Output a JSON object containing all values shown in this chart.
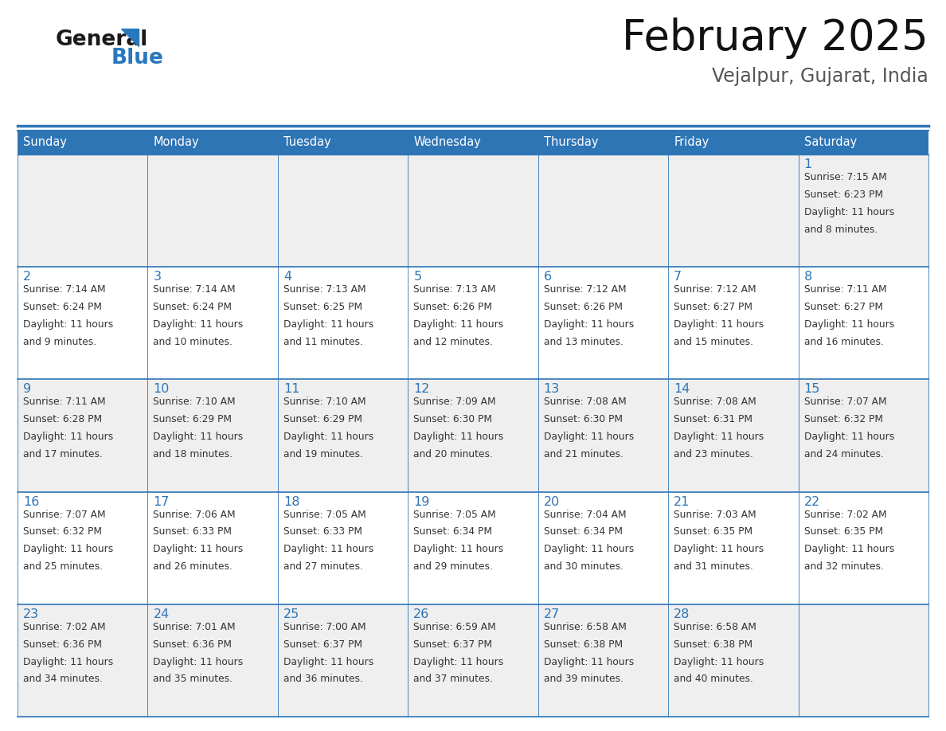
{
  "title": "February 2025",
  "subtitle": "Vejalpur, Gujarat, India",
  "header_bg": "#2E75B6",
  "header_text_color": "#FFFFFF",
  "cell_bg_odd": "#EFEFEF",
  "cell_bg_even": "#FFFFFF",
  "day_number_color": "#2E75B6",
  "info_text_color": "#333333",
  "border_color": "#2E75B6",
  "divider_color": "#2E75B6",
  "days_of_week": [
    "Sunday",
    "Monday",
    "Tuesday",
    "Wednesday",
    "Thursday",
    "Friday",
    "Saturday"
  ],
  "logo_general_color": "#1A1A1A",
  "logo_blue_color": "#2878BE",
  "calendar_data": [
    [
      null,
      null,
      null,
      null,
      null,
      null,
      {
        "day": "1",
        "sunrise": "7:15 AM",
        "sunset": "6:23 PM",
        "daylight_l1": "Daylight: 11 hours",
        "daylight_l2": "and 8 minutes."
      }
    ],
    [
      {
        "day": "2",
        "sunrise": "7:14 AM",
        "sunset": "6:24 PM",
        "daylight_l1": "Daylight: 11 hours",
        "daylight_l2": "and 9 minutes."
      },
      {
        "day": "3",
        "sunrise": "7:14 AM",
        "sunset": "6:24 PM",
        "daylight_l1": "Daylight: 11 hours",
        "daylight_l2": "and 10 minutes."
      },
      {
        "day": "4",
        "sunrise": "7:13 AM",
        "sunset": "6:25 PM",
        "daylight_l1": "Daylight: 11 hours",
        "daylight_l2": "and 11 minutes."
      },
      {
        "day": "5",
        "sunrise": "7:13 AM",
        "sunset": "6:26 PM",
        "daylight_l1": "Daylight: 11 hours",
        "daylight_l2": "and 12 minutes."
      },
      {
        "day": "6",
        "sunrise": "7:12 AM",
        "sunset": "6:26 PM",
        "daylight_l1": "Daylight: 11 hours",
        "daylight_l2": "and 13 minutes."
      },
      {
        "day": "7",
        "sunrise": "7:12 AM",
        "sunset": "6:27 PM",
        "daylight_l1": "Daylight: 11 hours",
        "daylight_l2": "and 15 minutes."
      },
      {
        "day": "8",
        "sunrise": "7:11 AM",
        "sunset": "6:27 PM",
        "daylight_l1": "Daylight: 11 hours",
        "daylight_l2": "and 16 minutes."
      }
    ],
    [
      {
        "day": "9",
        "sunrise": "7:11 AM",
        "sunset": "6:28 PM",
        "daylight_l1": "Daylight: 11 hours",
        "daylight_l2": "and 17 minutes."
      },
      {
        "day": "10",
        "sunrise": "7:10 AM",
        "sunset": "6:29 PM",
        "daylight_l1": "Daylight: 11 hours",
        "daylight_l2": "and 18 minutes."
      },
      {
        "day": "11",
        "sunrise": "7:10 AM",
        "sunset": "6:29 PM",
        "daylight_l1": "Daylight: 11 hours",
        "daylight_l2": "and 19 minutes."
      },
      {
        "day": "12",
        "sunrise": "7:09 AM",
        "sunset": "6:30 PM",
        "daylight_l1": "Daylight: 11 hours",
        "daylight_l2": "and 20 minutes."
      },
      {
        "day": "13",
        "sunrise": "7:08 AM",
        "sunset": "6:30 PM",
        "daylight_l1": "Daylight: 11 hours",
        "daylight_l2": "and 21 minutes."
      },
      {
        "day": "14",
        "sunrise": "7:08 AM",
        "sunset": "6:31 PM",
        "daylight_l1": "Daylight: 11 hours",
        "daylight_l2": "and 23 minutes."
      },
      {
        "day": "15",
        "sunrise": "7:07 AM",
        "sunset": "6:32 PM",
        "daylight_l1": "Daylight: 11 hours",
        "daylight_l2": "and 24 minutes."
      }
    ],
    [
      {
        "day": "16",
        "sunrise": "7:07 AM",
        "sunset": "6:32 PM",
        "daylight_l1": "Daylight: 11 hours",
        "daylight_l2": "and 25 minutes."
      },
      {
        "day": "17",
        "sunrise": "7:06 AM",
        "sunset": "6:33 PM",
        "daylight_l1": "Daylight: 11 hours",
        "daylight_l2": "and 26 minutes."
      },
      {
        "day": "18",
        "sunrise": "7:05 AM",
        "sunset": "6:33 PM",
        "daylight_l1": "Daylight: 11 hours",
        "daylight_l2": "and 27 minutes."
      },
      {
        "day": "19",
        "sunrise": "7:05 AM",
        "sunset": "6:34 PM",
        "daylight_l1": "Daylight: 11 hours",
        "daylight_l2": "and 29 minutes."
      },
      {
        "day": "20",
        "sunrise": "7:04 AM",
        "sunset": "6:34 PM",
        "daylight_l1": "Daylight: 11 hours",
        "daylight_l2": "and 30 minutes."
      },
      {
        "day": "21",
        "sunrise": "7:03 AM",
        "sunset": "6:35 PM",
        "daylight_l1": "Daylight: 11 hours",
        "daylight_l2": "and 31 minutes."
      },
      {
        "day": "22",
        "sunrise": "7:02 AM",
        "sunset": "6:35 PM",
        "daylight_l1": "Daylight: 11 hours",
        "daylight_l2": "and 32 minutes."
      }
    ],
    [
      {
        "day": "23",
        "sunrise": "7:02 AM",
        "sunset": "6:36 PM",
        "daylight_l1": "Daylight: 11 hours",
        "daylight_l2": "and 34 minutes."
      },
      {
        "day": "24",
        "sunrise": "7:01 AM",
        "sunset": "6:36 PM",
        "daylight_l1": "Daylight: 11 hours",
        "daylight_l2": "and 35 minutes."
      },
      {
        "day": "25",
        "sunrise": "7:00 AM",
        "sunset": "6:37 PM",
        "daylight_l1": "Daylight: 11 hours",
        "daylight_l2": "and 36 minutes."
      },
      {
        "day": "26",
        "sunrise": "6:59 AM",
        "sunset": "6:37 PM",
        "daylight_l1": "Daylight: 11 hours",
        "daylight_l2": "and 37 minutes."
      },
      {
        "day": "27",
        "sunrise": "6:58 AM",
        "sunset": "6:38 PM",
        "daylight_l1": "Daylight: 11 hours",
        "daylight_l2": "and 39 minutes."
      },
      {
        "day": "28",
        "sunrise": "6:58 AM",
        "sunset": "6:38 PM",
        "daylight_l1": "Daylight: 11 hours",
        "daylight_l2": "and 40 minutes."
      },
      null
    ]
  ]
}
